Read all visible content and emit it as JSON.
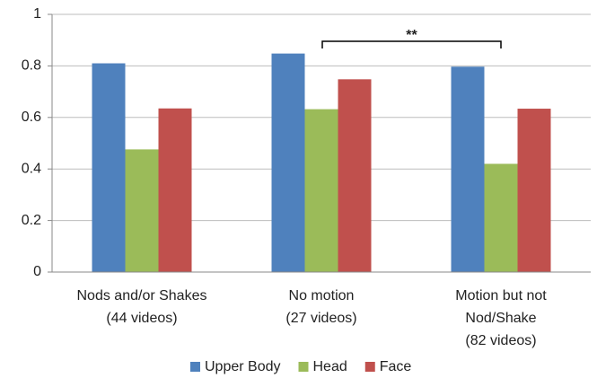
{
  "chart_data": {
    "type": "bar",
    "categories": [
      [
        "Nods and/or Shakes",
        "(44 videos)"
      ],
      [
        "No motion",
        "(27 videos)"
      ],
      [
        "Motion but not",
        "Nod/Shake",
        "(82 videos)"
      ]
    ],
    "series": [
      {
        "name": "Upper Body",
        "color": "#4f81bd",
        "values": [
          0.81,
          0.848,
          0.797
        ]
      },
      {
        "name": "Head",
        "color": "#9bbb59",
        "values": [
          0.476,
          0.632,
          0.42
        ]
      },
      {
        "name": "Face",
        "color": "#c0504d",
        "values": [
          0.635,
          0.748,
          0.634
        ]
      }
    ],
    "annotation": "**",
    "ylim": [
      0,
      1
    ],
    "yticks": [
      0,
      0.2,
      0.4,
      0.6,
      0.8,
      1
    ],
    "grid": true,
    "legend": "bottom"
  }
}
